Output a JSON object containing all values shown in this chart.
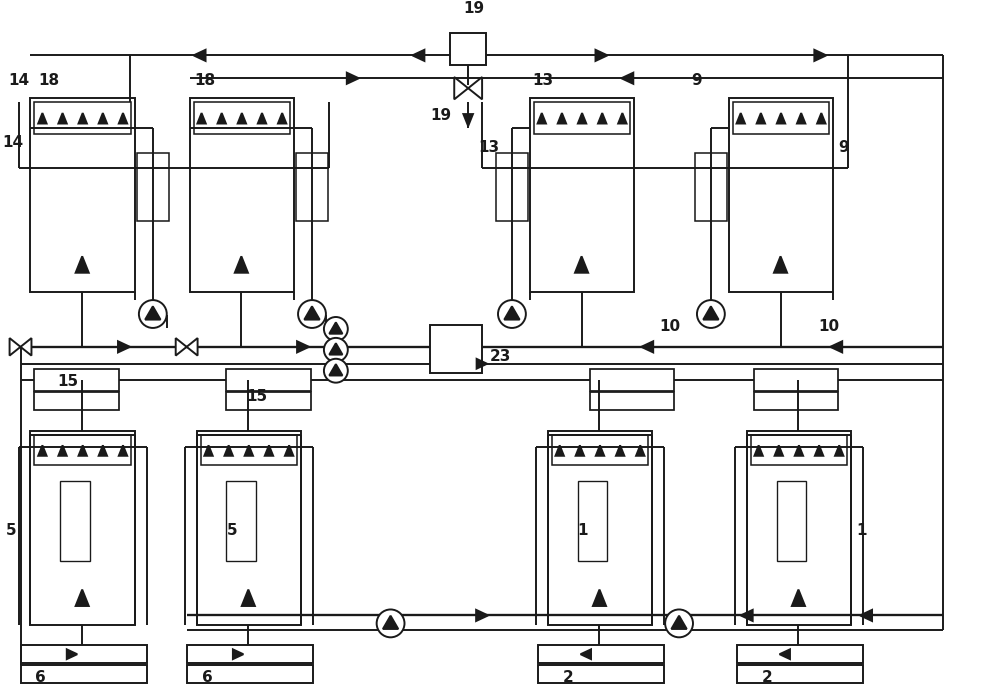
{
  "bg_color": "#ffffff",
  "line_color": "#1a1a1a",
  "lw": 1.4,
  "figsize": [
    10.0,
    6.98
  ],
  "dpi": 100
}
